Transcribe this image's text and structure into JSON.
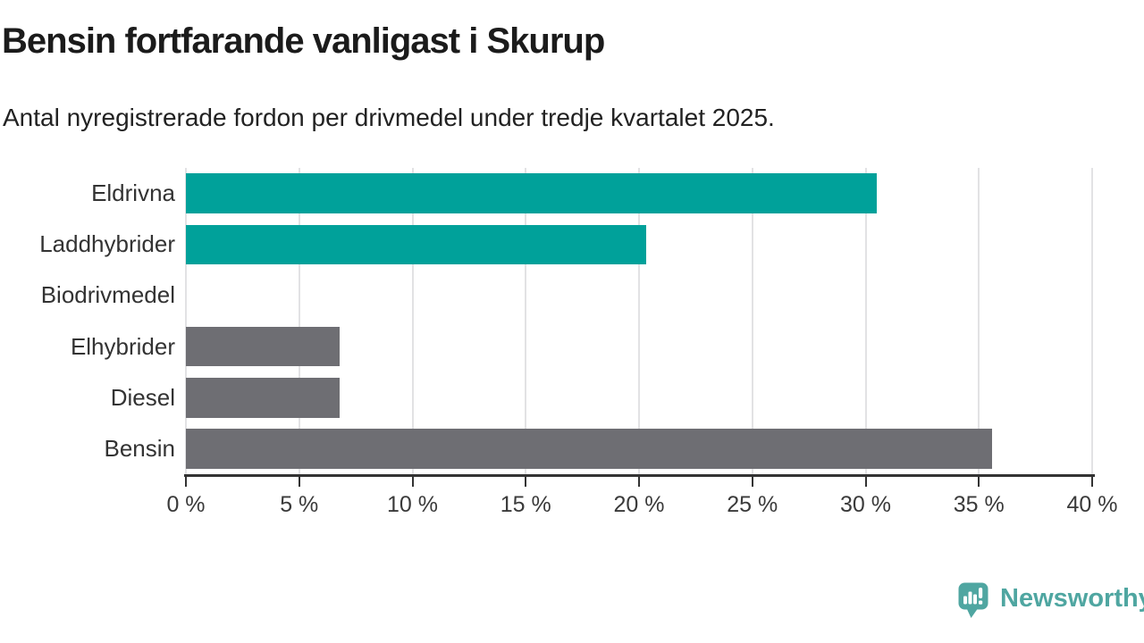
{
  "header": {
    "title": "Bensin fortfarande vanligast i Skurup",
    "subtitle": "Antal nyregistrerade fordon per drivmedel under tredje kvartalet 2025."
  },
  "chart_data": {
    "type": "bar",
    "orientation": "horizontal",
    "title": "Bensin fortfarande vanligast i Skurup",
    "subtitle": "Antal nyregistrerade fordon per drivmedel under tredje kvartalet 2025.",
    "categories": [
      "Eldrivna",
      "Laddhybrider",
      "Biodrivmedel",
      "Elhybrider",
      "Diesel",
      "Bensin"
    ],
    "values": [
      30.5,
      20.3,
      0,
      6.8,
      6.8,
      35.6
    ],
    "unit": "%",
    "bar_colors": [
      "#00a19a",
      "#00a19a",
      "#00a19a",
      "#6e6e73",
      "#6e6e73",
      "#6e6e73"
    ],
    "xlim": [
      0,
      40
    ],
    "x_tick_step": 5,
    "x_tick_labels": [
      "0 %",
      "5 %",
      "10 %",
      "15 %",
      "20 %",
      "25 %",
      "30 %",
      "35 %",
      "40 %"
    ],
    "grid": true,
    "legend": false,
    "xlabel": "",
    "ylabel": ""
  },
  "branding": {
    "logo_text": "Newsworthy"
  },
  "colors": {
    "highlight_bar": "#00a19a",
    "muted_bar": "#6e6e73",
    "gridline": "#e2e2e4",
    "axis": "#333333",
    "tick_label": "#3a3a3a",
    "category_label": "#333333",
    "title": "#1b1b1b",
    "subtitle": "#222222",
    "logo": "#4fa6a1",
    "background": "#ffffff"
  }
}
